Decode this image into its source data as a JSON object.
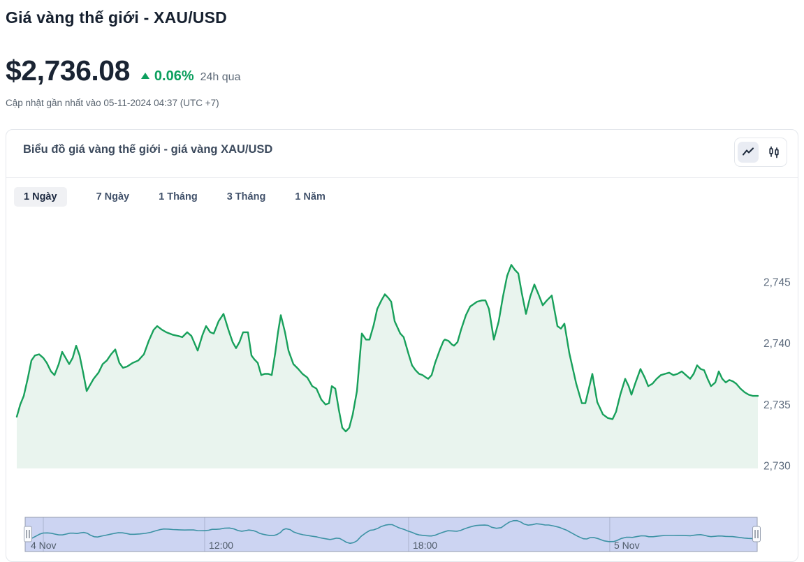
{
  "header": {
    "title": "Giá vàng thế giới - XAU/USD",
    "price": "$2,736.08",
    "change_percent": "0.06%",
    "change_direction": "up",
    "change_period": "24h qua",
    "updated_text": "Cập nhật gần nhất vào 05-11-2024 04:37 (UTC +7)"
  },
  "card": {
    "title": "Biểu đồ giá vàng thế giới - giá vàng XAU/USD",
    "view_toggles": [
      "line-chart",
      "candlestick-chart"
    ],
    "active_toggle": "line-chart",
    "tabs": [
      {
        "label": "1 Ngày",
        "active": true
      },
      {
        "label": "7 Ngày",
        "active": false
      },
      {
        "label": "1 Tháng",
        "active": false
      },
      {
        "label": "3 Tháng",
        "active": false
      },
      {
        "label": "1 Năm",
        "active": false
      }
    ]
  },
  "chart_data": {
    "type": "line",
    "title": "Biểu đồ giá vàng thế giới - giá vàng XAU/USD",
    "series_name": "XAU/USD",
    "ylabel": "USD",
    "ylim": [
      2729.6,
      2750.5
    ],
    "grid": false,
    "legend": false,
    "y_ticks": [
      {
        "value": 2745,
        "label": "2,745"
      },
      {
        "value": 2740,
        "label": "2,740"
      },
      {
        "value": 2735,
        "label": "2,735"
      },
      {
        "value": 2730,
        "label": "2,730"
      }
    ],
    "x_labels": [
      {
        "label": "4 Nov",
        "line_f": 0.0248,
        "text_f": 0.0076
      },
      {
        "label": "12:00",
        "line_f": 0.2452,
        "text_f": 0.251
      },
      {
        "label": "18:00",
        "line_f": 0.5238,
        "text_f": 0.5296
      },
      {
        "label": "5 Nov",
        "line_f": 0.7986,
        "text_f": 0.8044
      }
    ],
    "colors": {
      "line": "#18a05b",
      "area": "#e9f4ee",
      "nav_fill": "#ccd4f2",
      "nav_line": "#3c92a4",
      "nav_border": "#959daf",
      "tick_text": "#5d6b7d",
      "nav_text": "#4e5a68",
      "up": "#0c9f5e"
    },
    "points": [
      [
        0.0,
        2734.0
      ],
      [
        0.0047,
        2735.0
      ],
      [
        0.0094,
        2735.7
      ],
      [
        0.0151,
        2737.2
      ],
      [
        0.0198,
        2738.6
      ],
      [
        0.0245,
        2739.0
      ],
      [
        0.0302,
        2739.1
      ],
      [
        0.0358,
        2738.8
      ],
      [
        0.0405,
        2738.4
      ],
      [
        0.0462,
        2737.7
      ],
      [
        0.0509,
        2737.4
      ],
      [
        0.0566,
        2738.3
      ],
      [
        0.0613,
        2739.3
      ],
      [
        0.066,
        2738.8
      ],
      [
        0.0707,
        2738.3
      ],
      [
        0.0754,
        2738.8
      ],
      [
        0.0801,
        2739.8
      ],
      [
        0.0848,
        2739.0
      ],
      [
        0.0895,
        2737.6
      ],
      [
        0.0943,
        2736.1
      ],
      [
        0.099,
        2736.6
      ],
      [
        0.1037,
        2737.1
      ],
      [
        0.1103,
        2737.6
      ],
      [
        0.1159,
        2738.3
      ],
      [
        0.1216,
        2738.6
      ],
      [
        0.1272,
        2739.1
      ],
      [
        0.1329,
        2739.5
      ],
      [
        0.1385,
        2738.4
      ],
      [
        0.1433,
        2738.0
      ],
      [
        0.1489,
        2738.1
      ],
      [
        0.1565,
        2738.4
      ],
      [
        0.164,
        2738.6
      ],
      [
        0.1715,
        2739.1
      ],
      [
        0.1781,
        2740.2
      ],
      [
        0.1847,
        2741.1
      ],
      [
        0.1894,
        2741.4
      ],
      [
        0.196,
        2741.1
      ],
      [
        0.2017,
        2740.9
      ],
      [
        0.2102,
        2740.7
      ],
      [
        0.2177,
        2740.6
      ],
      [
        0.2234,
        2740.5
      ],
      [
        0.23,
        2740.9
      ],
      [
        0.2356,
        2740.6
      ],
      [
        0.2441,
        2739.4
      ],
      [
        0.2507,
        2740.7
      ],
      [
        0.2554,
        2741.4
      ],
      [
        0.2611,
        2740.9
      ],
      [
        0.2658,
        2740.8
      ],
      [
        0.2724,
        2741.8
      ],
      [
        0.279,
        2742.4
      ],
      [
        0.2856,
        2741.1
      ],
      [
        0.2912,
        2740.1
      ],
      [
        0.2959,
        2739.6
      ],
      [
        0.3006,
        2740.1
      ],
      [
        0.3054,
        2740.9
      ],
      [
        0.312,
        2740.9
      ],
      [
        0.3167,
        2739.0
      ],
      [
        0.3204,
        2738.7
      ],
      [
        0.3252,
        2738.4
      ],
      [
        0.3299,
        2737.4
      ],
      [
        0.3346,
        2737.5
      ],
      [
        0.3393,
        2737.5
      ],
      [
        0.344,
        2737.4
      ],
      [
        0.3487,
        2739.2
      ],
      [
        0.3525,
        2740.9
      ],
      [
        0.3563,
        2742.3
      ],
      [
        0.3619,
        2740.9
      ],
      [
        0.3666,
        2739.4
      ],
      [
        0.3732,
        2738.3
      ],
      [
        0.3798,
        2737.9
      ],
      [
        0.3855,
        2737.5
      ],
      [
        0.3921,
        2737.2
      ],
      [
        0.3987,
        2736.5
      ],
      [
        0.4043,
        2736.3
      ],
      [
        0.4109,
        2735.4
      ],
      [
        0.4166,
        2735.0
      ],
      [
        0.4213,
        2735.1
      ],
      [
        0.4251,
        2736.5
      ],
      [
        0.4298,
        2736.3
      ],
      [
        0.4345,
        2734.6
      ],
      [
        0.4392,
        2733.1
      ],
      [
        0.4439,
        2732.8
      ],
      [
        0.4486,
        2733.1
      ],
      [
        0.4533,
        2734.2
      ],
      [
        0.459,
        2736.1
      ],
      [
        0.4656,
        2740.8
      ],
      [
        0.4713,
        2740.3
      ],
      [
        0.476,
        2740.3
      ],
      [
        0.4816,
        2741.5
      ],
      [
        0.4863,
        2742.8
      ],
      [
        0.492,
        2743.5
      ],
      [
        0.4967,
        2744.0
      ],
      [
        0.5014,
        2743.7
      ],
      [
        0.5052,
        2743.4
      ],
      [
        0.5099,
        2741.8
      ],
      [
        0.5174,
        2740.8
      ],
      [
        0.5221,
        2740.5
      ],
      [
        0.5287,
        2739.1
      ],
      [
        0.5334,
        2738.2
      ],
      [
        0.5381,
        2737.8
      ],
      [
        0.5429,
        2737.5
      ],
      [
        0.5476,
        2737.4
      ],
      [
        0.5523,
        2737.2
      ],
      [
        0.5551,
        2737.1
      ],
      [
        0.5598,
        2737.4
      ],
      [
        0.5645,
        2738.4
      ],
      [
        0.5711,
        2739.5
      ],
      [
        0.5759,
        2740.2
      ],
      [
        0.5777,
        2740.3
      ],
      [
        0.5825,
        2740.2
      ],
      [
        0.5872,
        2739.9
      ],
      [
        0.59,
        2739.8
      ],
      [
        0.5947,
        2740.1
      ],
      [
        0.5994,
        2741.1
      ],
      [
        0.606,
        2742.3
      ],
      [
        0.6117,
        2743.0
      ],
      [
        0.6164,
        2743.2
      ],
      [
        0.6211,
        2743.4
      ],
      [
        0.6277,
        2743.5
      ],
      [
        0.6324,
        2743.5
      ],
      [
        0.6371,
        2742.8
      ],
      [
        0.6437,
        2740.3
      ],
      [
        0.6503,
        2741.8
      ],
      [
        0.656,
        2743.8
      ],
      [
        0.6616,
        2745.5
      ],
      [
        0.6673,
        2746.4
      ],
      [
        0.672,
        2746.0
      ],
      [
        0.6767,
        2745.7
      ],
      [
        0.6814,
        2744.1
      ],
      [
        0.6871,
        2742.4
      ],
      [
        0.6927,
        2743.8
      ],
      [
        0.6984,
        2744.8
      ],
      [
        0.704,
        2744.0
      ],
      [
        0.7097,
        2743.1
      ],
      [
        0.7153,
        2743.5
      ],
      [
        0.7219,
        2743.9
      ],
      [
        0.7295,
        2741.4
      ],
      [
        0.7342,
        2741.2
      ],
      [
        0.7389,
        2741.6
      ],
      [
        0.7455,
        2739.2
      ],
      [
        0.7549,
        2736.7
      ],
      [
        0.7625,
        2735.1
      ],
      [
        0.7672,
        2735.1
      ],
      [
        0.7719,
        2736.3
      ],
      [
        0.7766,
        2737.5
      ],
      [
        0.7832,
        2735.2
      ],
      [
        0.7908,
        2734.2
      ],
      [
        0.7974,
        2733.9
      ],
      [
        0.8039,
        2733.8
      ],
      [
        0.8086,
        2734.4
      ],
      [
        0.8143,
        2735.8
      ],
      [
        0.8209,
        2737.1
      ],
      [
        0.8256,
        2736.5
      ],
      [
        0.8294,
        2735.8
      ],
      [
        0.835,
        2736.8
      ],
      [
        0.8416,
        2737.9
      ],
      [
        0.8473,
        2737.2
      ],
      [
        0.852,
        2736.5
      ],
      [
        0.8577,
        2736.7
      ],
      [
        0.8633,
        2737.1
      ],
      [
        0.869,
        2737.4
      ],
      [
        0.8746,
        2737.5
      ],
      [
        0.8803,
        2737.6
      ],
      [
        0.886,
        2737.4
      ],
      [
        0.8916,
        2737.5
      ],
      [
        0.8973,
        2737.7
      ],
      [
        0.9029,
        2737.4
      ],
      [
        0.9086,
        2737.1
      ],
      [
        0.9133,
        2737.5
      ],
      [
        0.918,
        2738.2
      ],
      [
        0.9227,
        2737.9
      ],
      [
        0.9274,
        2737.8
      ],
      [
        0.9321,
        2737.1
      ],
      [
        0.9368,
        2736.5
      ],
      [
        0.9425,
        2736.8
      ],
      [
        0.9472,
        2737.7
      ],
      [
        0.9519,
        2737.1
      ],
      [
        0.9566,
        2736.8
      ],
      [
        0.9613,
        2737.0
      ],
      [
        0.9661,
        2736.9
      ],
      [
        0.9708,
        2736.7
      ],
      [
        0.9764,
        2736.3
      ],
      [
        0.9821,
        2736.0
      ],
      [
        0.9877,
        2735.8
      ],
      [
        0.9934,
        2735.7
      ],
      [
        1.0,
        2735.7
      ]
    ]
  }
}
